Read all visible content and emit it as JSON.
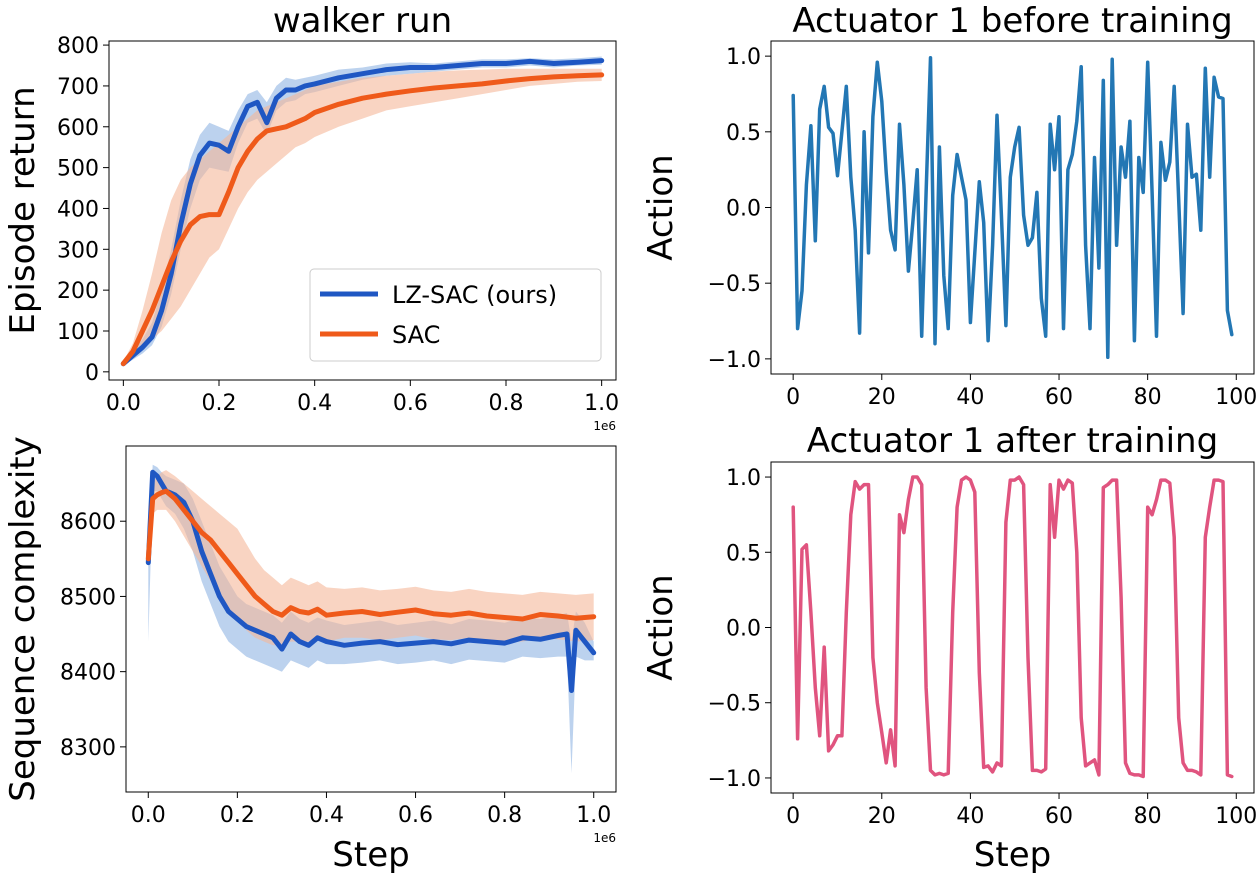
{
  "colors": {
    "lzsac": "#1f57c3",
    "lzsac_band": "#8fb4e3",
    "sac": "#ef5a1a",
    "sac_band": "#f5b89a",
    "before": "#2377b4",
    "after": "#e0547f"
  },
  "chart_data": [
    {
      "id": "return",
      "type": "line",
      "title": "walker run",
      "xlabel": "",
      "ylabel": "Episode return",
      "xlim": [
        -0.03,
        1.03
      ],
      "ylim": [
        -20,
        810
      ],
      "xticks": [
        0.0,
        0.2,
        0.4,
        0.6,
        0.8,
        1.0
      ],
      "xtick_labels": [
        "0.0",
        "0.2",
        "0.4",
        "0.6",
        "0.8",
        "1.0"
      ],
      "yticks": [
        0,
        100,
        200,
        300,
        400,
        500,
        600,
        700,
        800
      ],
      "ytick_labels": [
        "0",
        "100",
        "200",
        "300",
        "400",
        "500",
        "600",
        "700",
        "800"
      ],
      "x_offset_label": "1e6",
      "legend": {
        "position": "lower-right",
        "entries": [
          "LZ-SAC (ours)",
          "SAC"
        ]
      },
      "series": [
        {
          "name": "LZ-SAC (ours)",
          "color_key": "lzsac",
          "band_key": "lzsac_band",
          "x": [
            0.0,
            0.02,
            0.04,
            0.06,
            0.08,
            0.1,
            0.12,
            0.14,
            0.16,
            0.18,
            0.2,
            0.22,
            0.24,
            0.26,
            0.28,
            0.3,
            0.32,
            0.34,
            0.36,
            0.38,
            0.4,
            0.45,
            0.5,
            0.55,
            0.6,
            0.65,
            0.7,
            0.75,
            0.8,
            0.85,
            0.9,
            0.95,
            1.0
          ],
          "values": [
            20,
            40,
            60,
            85,
            150,
            240,
            360,
            460,
            530,
            560,
            555,
            540,
            600,
            650,
            660,
            610,
            670,
            690,
            690,
            700,
            705,
            720,
            730,
            740,
            745,
            745,
            750,
            755,
            755,
            760,
            755,
            758,
            762
          ],
          "lower": [
            15,
            30,
            45,
            65,
            110,
            190,
            300,
            400,
            470,
            500,
            495,
            490,
            560,
            610,
            620,
            580,
            640,
            660,
            665,
            680,
            685,
            700,
            715,
            725,
            730,
            735,
            740,
            745,
            745,
            750,
            745,
            750,
            752
          ],
          "upper": [
            25,
            50,
            80,
            120,
            200,
            300,
            420,
            520,
            580,
            610,
            600,
            590,
            640,
            680,
            690,
            660,
            700,
            720,
            715,
            720,
            725,
            740,
            745,
            755,
            758,
            755,
            760,
            765,
            765,
            768,
            765,
            768,
            772
          ]
        },
        {
          "name": "SAC",
          "color_key": "sac",
          "band_key": "sac_band",
          "x": [
            0.0,
            0.02,
            0.04,
            0.06,
            0.08,
            0.1,
            0.12,
            0.14,
            0.16,
            0.18,
            0.2,
            0.22,
            0.24,
            0.26,
            0.28,
            0.3,
            0.32,
            0.34,
            0.36,
            0.38,
            0.4,
            0.45,
            0.5,
            0.55,
            0.6,
            0.65,
            0.7,
            0.75,
            0.8,
            0.85,
            0.9,
            0.95,
            1.0
          ],
          "values": [
            20,
            50,
            100,
            150,
            210,
            270,
            320,
            360,
            380,
            385,
            385,
            440,
            500,
            540,
            570,
            590,
            595,
            600,
            610,
            620,
            635,
            655,
            670,
            680,
            688,
            695,
            700,
            705,
            712,
            718,
            722,
            725,
            727
          ],
          "lower": [
            15,
            35,
            60,
            80,
            100,
            130,
            160,
            200,
            240,
            280,
            300,
            350,
            400,
            440,
            470,
            490,
            510,
            530,
            550,
            560,
            575,
            600,
            620,
            640,
            650,
            660,
            670,
            680,
            690,
            700,
            705,
            710,
            712
          ],
          "upper": [
            25,
            70,
            150,
            240,
            340,
            420,
            470,
            500,
            520,
            540,
            560,
            580,
            600,
            620,
            640,
            650,
            660,
            670,
            680,
            690,
            700,
            710,
            720,
            725,
            730,
            735,
            738,
            740,
            742,
            742,
            742,
            742,
            742
          ]
        }
      ]
    },
    {
      "id": "complexity",
      "type": "line",
      "title": "",
      "xlabel": "Step",
      "ylabel": "Sequence complexity",
      "xlim": [
        -0.05,
        1.05
      ],
      "ylim": [
        8240,
        8700
      ],
      "xticks": [
        0.0,
        0.2,
        0.4,
        0.6,
        0.8,
        1.0
      ],
      "xtick_labels": [
        "0.0",
        "0.2",
        "0.4",
        "0.6",
        "0.8",
        "1.0"
      ],
      "yticks": [
        8300,
        8400,
        8500,
        8600
      ],
      "ytick_labels": [
        "8300",
        "8400",
        "8500",
        "8600"
      ],
      "x_offset_label": "1e6",
      "series": [
        {
          "name": "LZ-SAC (ours)",
          "color_key": "lzsac",
          "band_key": "lzsac_band",
          "x": [
            0.0,
            0.01,
            0.02,
            0.03,
            0.04,
            0.06,
            0.08,
            0.1,
            0.12,
            0.14,
            0.16,
            0.18,
            0.2,
            0.22,
            0.24,
            0.26,
            0.28,
            0.3,
            0.32,
            0.34,
            0.36,
            0.38,
            0.4,
            0.44,
            0.48,
            0.52,
            0.56,
            0.6,
            0.64,
            0.68,
            0.72,
            0.76,
            0.8,
            0.84,
            0.88,
            0.92,
            0.94,
            0.95,
            0.96,
            0.98,
            1.0
          ],
          "values": [
            8545,
            8665,
            8660,
            8650,
            8640,
            8635,
            8625,
            8600,
            8560,
            8530,
            8500,
            8480,
            8470,
            8460,
            8455,
            8450,
            8445,
            8430,
            8450,
            8440,
            8435,
            8445,
            8440,
            8435,
            8438,
            8440,
            8436,
            8438,
            8440,
            8437,
            8442,
            8440,
            8438,
            8445,
            8443,
            8448,
            8450,
            8375,
            8455,
            8440,
            8425
          ],
          "lower": [
            8440,
            8640,
            8640,
            8630,
            8620,
            8610,
            8590,
            8560,
            8520,
            8490,
            8460,
            8440,
            8430,
            8420,
            8415,
            8410,
            8405,
            8400,
            8415,
            8410,
            8405,
            8415,
            8410,
            8410,
            8412,
            8415,
            8410,
            8412,
            8415,
            8410,
            8416,
            8414,
            8412,
            8420,
            8418,
            8420,
            8420,
            8265,
            8420,
            8415,
            8415
          ],
          "upper": [
            8560,
            8675,
            8672,
            8665,
            8660,
            8655,
            8650,
            8630,
            8600,
            8570,
            8540,
            8520,
            8500,
            8490,
            8485,
            8480,
            8475,
            8465,
            8480,
            8470,
            8465,
            8472,
            8468,
            8462,
            8465,
            8468,
            8462,
            8465,
            8468,
            8463,
            8470,
            8468,
            8465,
            8472,
            8470,
            8475,
            8478,
            8440,
            8480,
            8465,
            8440
          ]
        },
        {
          "name": "SAC",
          "color_key": "sac",
          "band_key": "sac_band",
          "x": [
            0.0,
            0.01,
            0.02,
            0.03,
            0.04,
            0.06,
            0.08,
            0.1,
            0.12,
            0.14,
            0.16,
            0.18,
            0.2,
            0.22,
            0.24,
            0.26,
            0.28,
            0.3,
            0.32,
            0.34,
            0.36,
            0.38,
            0.4,
            0.44,
            0.48,
            0.52,
            0.56,
            0.6,
            0.64,
            0.68,
            0.72,
            0.76,
            0.8,
            0.84,
            0.88,
            0.92,
            0.96,
            1.0
          ],
          "values": [
            8550,
            8630,
            8635,
            8638,
            8640,
            8630,
            8615,
            8600,
            8585,
            8575,
            8560,
            8545,
            8530,
            8515,
            8500,
            8490,
            8480,
            8475,
            8485,
            8480,
            8478,
            8483,
            8475,
            8478,
            8480,
            8476,
            8479,
            8482,
            8477,
            8475,
            8478,
            8474,
            8472,
            8470,
            8476,
            8474,
            8471,
            8473
          ],
          "lower": [
            8540,
            8610,
            8615,
            8615,
            8615,
            8600,
            8580,
            8560,
            8540,
            8520,
            8500,
            8485,
            8470,
            8455,
            8445,
            8440,
            8435,
            8435,
            8440,
            8440,
            8440,
            8445,
            8440,
            8445,
            8445,
            8442,
            8445,
            8448,
            8443,
            8442,
            8445,
            8442,
            8440,
            8440,
            8445,
            8443,
            8440,
            8442
          ],
          "upper": [
            8560,
            8650,
            8660,
            8665,
            8668,
            8660,
            8650,
            8640,
            8630,
            8620,
            8610,
            8600,
            8590,
            8570,
            8550,
            8535,
            8525,
            8515,
            8525,
            8520,
            8515,
            8520,
            8512,
            8510,
            8512,
            8508,
            8510,
            8513,
            8508,
            8506,
            8510,
            8506,
            8504,
            8502,
            8506,
            8504,
            8502,
            8504
          ]
        }
      ]
    },
    {
      "id": "before",
      "type": "line",
      "title": "Actuator 1 before training",
      "xlabel": "",
      "ylabel": "Action",
      "xlim": [
        -5,
        104
      ],
      "ylim": [
        -1.1,
        1.1
      ],
      "xticks": [
        0,
        20,
        40,
        60,
        80,
        100
      ],
      "xtick_labels": [
        "0",
        "20",
        "40",
        "60",
        "80",
        "100"
      ],
      "yticks": [
        1.0,
        0.5,
        0.0,
        -0.5,
        -1.0
      ],
      "ytick_labels": [
        "1.0",
        "0.5",
        "0.0",
        "−0.5",
        "−1.0"
      ],
      "series": [
        {
          "name": "Actuator 1",
          "color_key": "before",
          "values": [
            0.74,
            -0.8,
            -0.55,
            0.15,
            0.54,
            -0.22,
            0.65,
            0.8,
            0.53,
            0.49,
            0.21,
            0.5,
            0.8,
            0.2,
            -0.15,
            -0.83,
            0.5,
            -0.3,
            0.6,
            0.96,
            0.7,
            0.23,
            -0.15,
            -0.28,
            0.55,
            0.15,
            -0.42,
            -0.1,
            0.25,
            -0.85,
            0.1,
            0.99,
            -0.9,
            0.4,
            -0.45,
            -0.8,
            0.08,
            0.35,
            0.2,
            0.05,
            -0.76,
            -0.3,
            0.17,
            -0.1,
            -0.88,
            -0.25,
            0.61,
            -0.05,
            -0.78,
            0.2,
            0.4,
            0.53,
            -0.05,
            -0.25,
            -0.2,
            0.1,
            -0.6,
            -0.85,
            0.55,
            0.25,
            0.6,
            -0.8,
            0.25,
            0.35,
            0.57,
            0.93,
            -0.25,
            -0.8,
            0.33,
            -0.4,
            0.84,
            -0.99,
            0.98,
            -0.25,
            0.4,
            0.2,
            0.57,
            -0.88,
            0.33,
            0.1,
            0.96,
            0.1,
            -0.85,
            0.43,
            0.18,
            0.3,
            0.8,
            0.05,
            -0.7,
            0.55,
            0.2,
            0.22,
            -0.15,
            0.92,
            0.2,
            0.86,
            0.73,
            0.72,
            -0.68,
            -0.84
          ]
        }
      ]
    },
    {
      "id": "after",
      "type": "line",
      "title": "Actuator 1 after training",
      "xlabel": "Step",
      "ylabel": "Action",
      "xlim": [
        -5,
        104
      ],
      "ylim": [
        -1.1,
        1.1
      ],
      "xticks": [
        0,
        20,
        40,
        60,
        80,
        100
      ],
      "xtick_labels": [
        "0",
        "20",
        "40",
        "60",
        "80",
        "100"
      ],
      "yticks": [
        1.0,
        0.5,
        0.0,
        -0.5,
        -1.0
      ],
      "ytick_labels": [
        "1.0",
        "0.5",
        "0.0",
        "−0.5",
        "−1.0"
      ],
      "series": [
        {
          "name": "Actuator 1",
          "color_key": "after",
          "values": [
            0.8,
            -0.74,
            0.52,
            0.55,
            0.1,
            -0.4,
            -0.72,
            -0.13,
            -0.82,
            -0.78,
            -0.72,
            -0.72,
            0.1,
            0.75,
            0.97,
            0.92,
            0.95,
            0.95,
            -0.2,
            -0.5,
            -0.7,
            -0.9,
            -0.68,
            -0.92,
            0.75,
            0.63,
            0.85,
            1.0,
            1.0,
            0.95,
            -0.4,
            -0.95,
            -0.98,
            -0.97,
            -0.98,
            -0.97,
            0.1,
            0.8,
            0.98,
            1.0,
            0.98,
            0.9,
            -0.3,
            -0.93,
            -0.92,
            -0.96,
            -0.9,
            -0.92,
            0.7,
            0.98,
            0.98,
            1.0,
            0.95,
            -0.2,
            -0.95,
            -0.95,
            -0.96,
            -0.94,
            0.95,
            0.6,
            0.98,
            0.92,
            0.98,
            0.96,
            0.5,
            -0.6,
            -0.92,
            -0.9,
            -0.88,
            -0.98,
            0.93,
            0.95,
            0.98,
            0.98,
            0.2,
            -0.9,
            -0.97,
            -0.98,
            -0.98,
            -0.99,
            0.8,
            0.75,
            0.85,
            0.98,
            0.98,
            0.96,
            0.6,
            -0.6,
            -0.9,
            -0.95,
            -0.95,
            -0.96,
            -0.98,
            0.6,
            0.8,
            0.98,
            0.98,
            0.97,
            -0.98,
            -0.99
          ]
        }
      ]
    }
  ]
}
